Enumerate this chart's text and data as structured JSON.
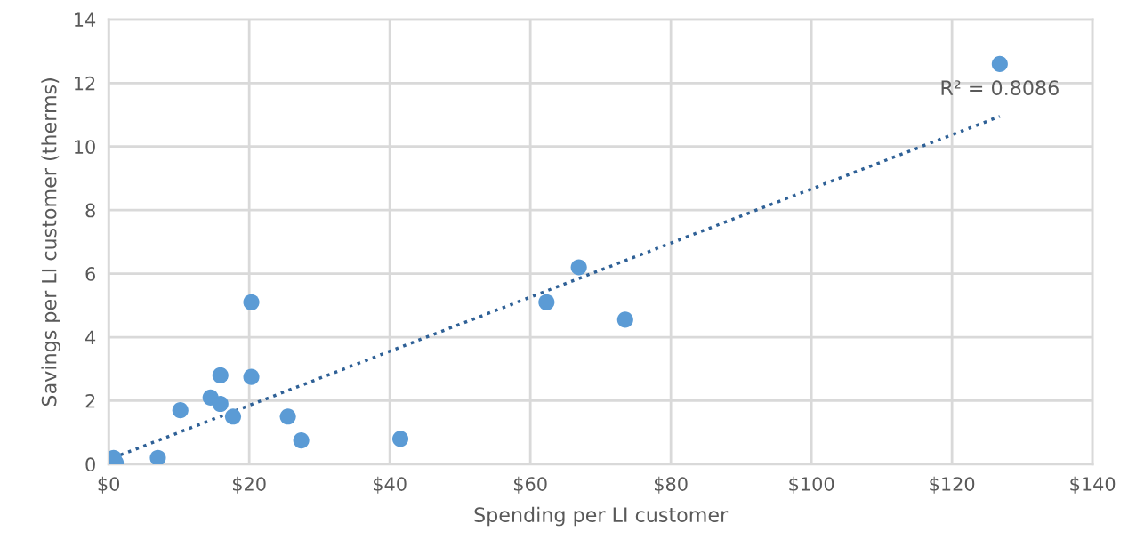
{
  "chart_data": {
    "type": "scatter",
    "xlabel": "Spending per LI customer",
    "ylabel": "Savings per LI customer (therms)",
    "series": [
      {
        "color": "#5b9bd5",
        "x": [
          0.7,
          1.0,
          7.0,
          10.2,
          14.5,
          15.9,
          15.9,
          17.7,
          20.3,
          20.3,
          25.5,
          27.4,
          41.5,
          62.3,
          66.9,
          73.5,
          126.8
        ],
        "values": [
          0.2,
          0.05,
          0.2,
          1.7,
          2.1,
          2.8,
          1.9,
          1.5,
          5.1,
          2.75,
          1.5,
          0.75,
          0.8,
          5.1,
          6.2,
          4.55,
          12.6
        ]
      },
      {
        "type": "line",
        "color": "#2e6096",
        "line_style": "dotted",
        "marker": "none",
        "x": [
          0.6,
          126.8
        ],
        "values": [
          0.2,
          10.95
        ]
      }
    ],
    "marker": "circle",
    "xlim": [
      0,
      140
    ],
    "ylim": [
      0,
      14
    ],
    "xticks": [
      {
        "value": 0,
        "label": "$0"
      },
      {
        "value": 20,
        "label": "$20"
      },
      {
        "value": 40,
        "label": "$40"
      },
      {
        "value": 60,
        "label": "$60"
      },
      {
        "value": 80,
        "label": "$80"
      },
      {
        "value": 100,
        "label": "$100"
      },
      {
        "value": 120,
        "label": "$120"
      },
      {
        "value": 140,
        "label": "$140"
      }
    ],
    "yticks": [
      0,
      2,
      4,
      6,
      8,
      10,
      12,
      14
    ],
    "grid": true,
    "legend": false,
    "annotations": [
      {
        "text": "R² = 0.8086",
        "x": 126.8,
        "y": 10.95
      }
    ]
  }
}
